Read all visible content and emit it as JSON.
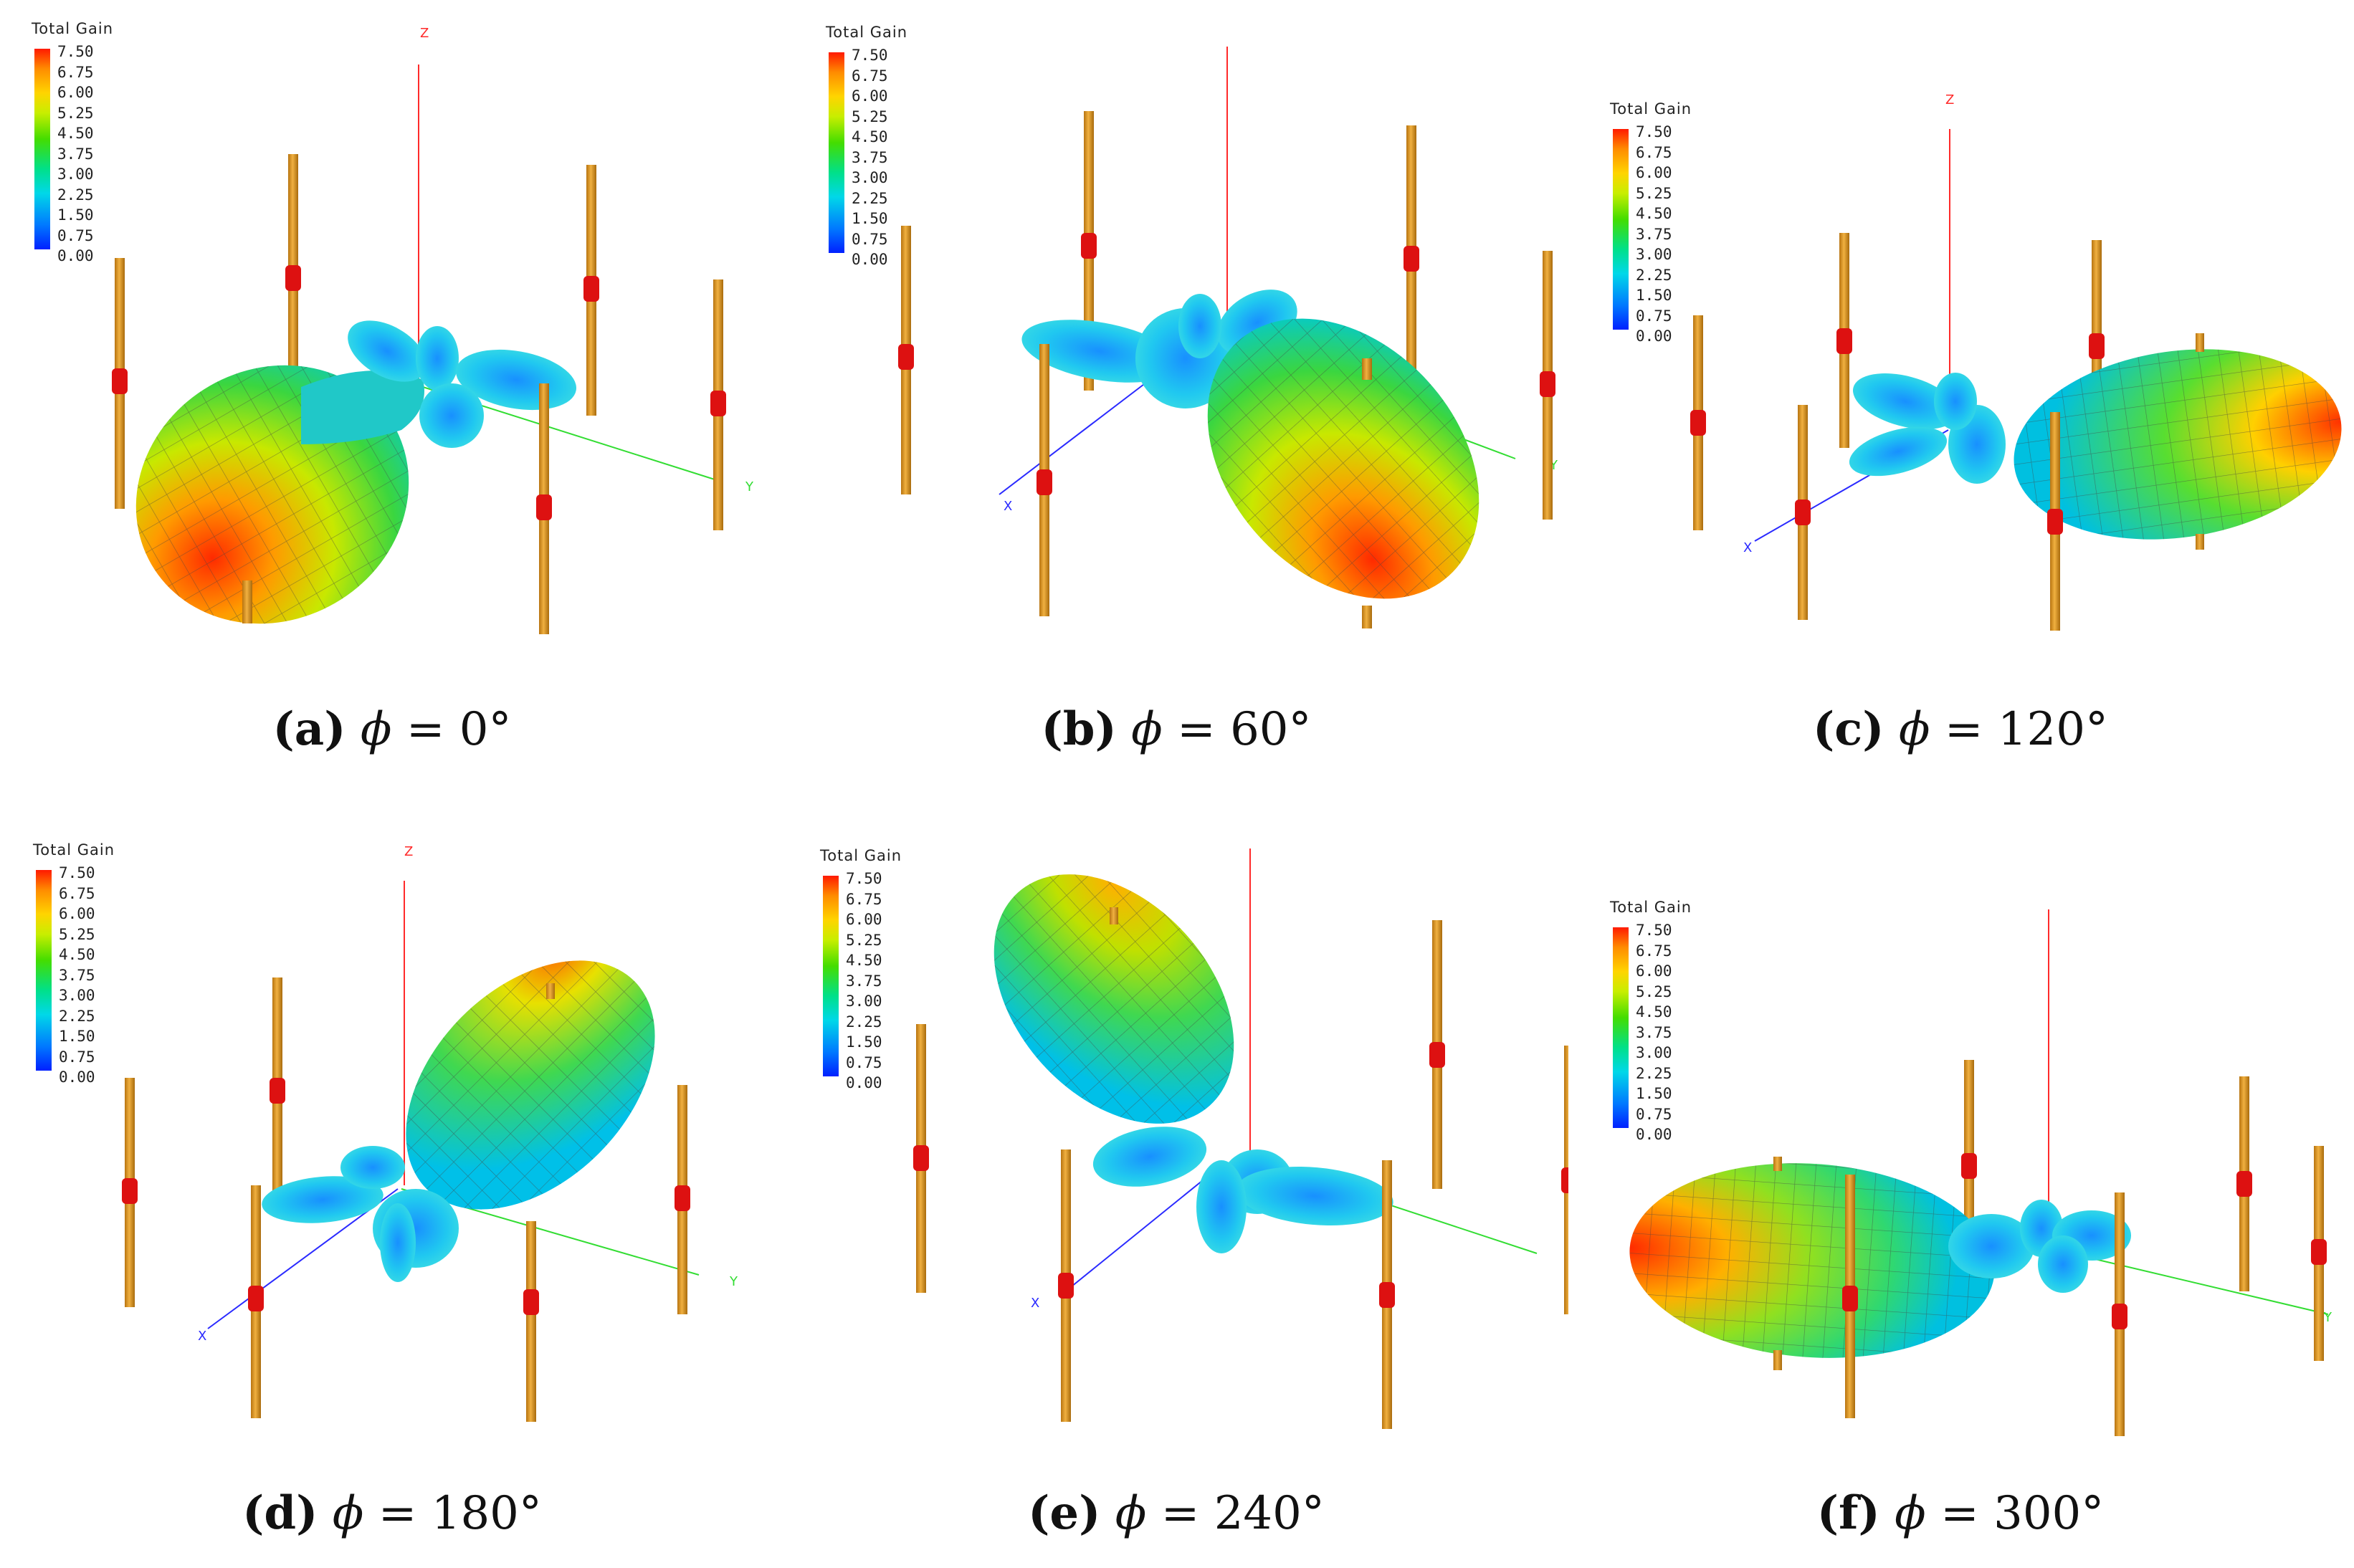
{
  "legend": {
    "title": "Total Gain",
    "ticks": [
      "7.50",
      "6.75",
      "6.00",
      "5.25",
      "4.50",
      "3.75",
      "3.00",
      "2.25",
      "1.50",
      "0.75",
      "0.00"
    ]
  },
  "axis_labels": {
    "x": "X",
    "y": "Y",
    "z": "Z"
  },
  "colors": {
    "z_axis": "#ff2a2a",
    "x_axis": "#2a2aff",
    "y_axis": "#33dd33",
    "rod": "#d4901c",
    "feed": "#dd1111"
  },
  "panels": [
    {
      "tag": "(a)",
      "phi": "ϕ",
      "eq": " = 0°"
    },
    {
      "tag": "(b)",
      "phi": "ϕ",
      "eq": " = 60°"
    },
    {
      "tag": "(c)",
      "phi": "ϕ",
      "eq": " = 120°"
    },
    {
      "tag": "(d)",
      "phi": "ϕ",
      "eq": " = 180°"
    },
    {
      "tag": "(e)",
      "phi": "ϕ",
      "eq": " = 240°"
    },
    {
      "tag": "(f)",
      "phi": "ϕ",
      "eq": " = 300°"
    }
  ]
}
